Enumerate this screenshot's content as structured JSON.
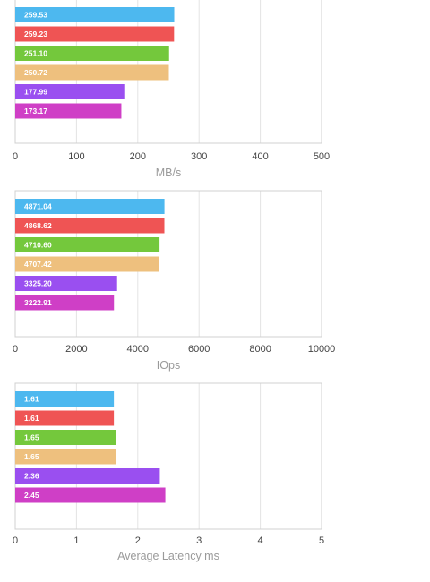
{
  "chart_data": [
    {
      "type": "bar",
      "orientation": "horizontal",
      "values": [
        259.53,
        259.23,
        251.1,
        250.72,
        177.99,
        173.17
      ],
      "value_labels": [
        "259.53",
        "259.23",
        "251.10",
        "250.72",
        "177.99",
        "173.17"
      ],
      "xlabel": "MB/s",
      "xlim": [
        0,
        500
      ],
      "xticks": [
        "0",
        "100",
        "200",
        "300",
        "400",
        "500"
      ],
      "grid": true
    },
    {
      "type": "bar",
      "orientation": "horizontal",
      "values": [
        4871.04,
        4868.62,
        4710.6,
        4707.42,
        3325.2,
        3222.91
      ],
      "value_labels": [
        "4871.04",
        "4868.62",
        "4710.60",
        "4707.42",
        "3325.20",
        "3222.91"
      ],
      "xlabel": "IOps",
      "xlim": [
        0,
        10000
      ],
      "xticks": [
        "0",
        "2000",
        "4000",
        "6000",
        "8000",
        "10000"
      ],
      "grid": true
    },
    {
      "type": "bar",
      "orientation": "horizontal",
      "values": [
        1.61,
        1.61,
        1.65,
        1.65,
        2.36,
        2.45
      ],
      "value_labels": [
        "1.61",
        "1.61",
        "1.65",
        "1.65",
        "2.36",
        "2.45"
      ],
      "xlabel": "Average Latency ms",
      "xlim": [
        0,
        5
      ],
      "xticks": [
        "0",
        "1",
        "2",
        "3",
        "4",
        "5"
      ],
      "grid": true
    }
  ],
  "colors": {
    "bars": [
      "#4db8ef",
      "#ef5454",
      "#74c83c",
      "#eec07e",
      "#9a4ff0",
      "#cf3fc6"
    ],
    "axis_label": "#9a9a9a",
    "grid": "#e4e4e4"
  }
}
